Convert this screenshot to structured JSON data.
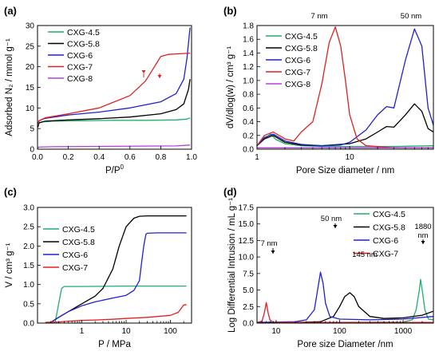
{
  "chart_data": [
    {
      "panel": "(a)",
      "type": "line",
      "xlabel": "P/P",
      "xlabel_sup": "0",
      "ylabel": "Adsorbed N₂ / mmol g⁻¹",
      "xlim": [
        0,
        1
      ],
      "ylim": [
        0,
        30
      ],
      "xticks": [
        0.0,
        0.2,
        0.4,
        0.6,
        0.8,
        1.0
      ],
      "xticklabels": [
        "0.0",
        "0.2",
        "0.4",
        "0.6",
        "0.8",
        "1.0"
      ],
      "yticks": [
        0,
        5,
        10,
        15,
        20,
        25,
        30
      ],
      "legend_position": "top-left",
      "series": [
        {
          "name": "CXG-4.5",
          "color": "#1fae6e",
          "x": [
            0.002,
            0.01,
            0.03,
            0.1,
            0.3,
            0.5,
            0.7,
            0.9,
            0.97,
            0.99
          ],
          "y": [
            5.6,
            6.3,
            6.6,
            6.8,
            6.9,
            7.0,
            7.0,
            7.1,
            7.3,
            7.6
          ]
        },
        {
          "name": "CXG-5.8",
          "color": "#000000",
          "x": [
            0.002,
            0.01,
            0.05,
            0.2,
            0.4,
            0.6,
            0.8,
            0.9,
            0.95,
            0.98,
            0.99
          ],
          "y": [
            5.3,
            6.4,
            6.8,
            7.1,
            7.4,
            7.8,
            8.6,
            9.6,
            11.0,
            14.5,
            17.0
          ]
        },
        {
          "name": "CXG-6",
          "color": "#2020cc",
          "x": [
            0.002,
            0.01,
            0.05,
            0.2,
            0.4,
            0.6,
            0.8,
            0.9,
            0.95,
            0.97,
            0.99
          ],
          "y": [
            6.0,
            6.9,
            7.5,
            8.3,
            9.0,
            10.0,
            11.5,
            13.5,
            17.0,
            22.0,
            29.5
          ]
        },
        {
          "name": "CXG-7",
          "color": "#e02020",
          "x": [
            0.002,
            0.01,
            0.05,
            0.2,
            0.4,
            0.6,
            0.7,
            0.75,
            0.8,
            0.85,
            0.9,
            0.99
          ],
          "y": [
            5.8,
            6.9,
            7.6,
            8.6,
            10.0,
            13.0,
            16.5,
            19.5,
            22.5,
            23.0,
            23.1,
            23.3
          ]
        },
        {
          "name": "CXG-8",
          "color": "#b040d8",
          "x": [
            0.002,
            0.01,
            0.1,
            0.5,
            0.9,
            0.99
          ],
          "y": [
            0.3,
            0.5,
            0.6,
            0.7,
            0.8,
            1.0
          ]
        }
      ]
    },
    {
      "panel": "(b)",
      "type": "line",
      "xlabel": "Pore Size diameter / nm",
      "ylabel": "dV/dlog(w) / cm³ g⁻¹",
      "xscale": "log",
      "xlim": [
        1,
        80
      ],
      "ylim": [
        0,
        1.8
      ],
      "xticks": [
        1,
        10
      ],
      "xticklabels": [
        "1",
        "10"
      ],
      "yticks": [
        0.0,
        0.2,
        0.4,
        0.6,
        0.8,
        1.0,
        1.2,
        1.4,
        1.6,
        1.8
      ],
      "yticklabels": [
        "0.0",
        "0.2",
        "0.4",
        "0.6",
        "0.8",
        "1.0",
        "1.2",
        "1.4",
        "1.6",
        "1.8"
      ],
      "annotations": [
        "7 nm",
        "50 nm"
      ],
      "legend_position": "top-left",
      "series": [
        {
          "name": "CXG-4.5",
          "color": "#1fae6e",
          "x": [
            1,
            1.2,
            1.4,
            1.6,
            2,
            3,
            5,
            10,
            30,
            80
          ],
          "y": [
            0.05,
            0.15,
            0.22,
            0.14,
            0.08,
            0.05,
            0.04,
            0.04,
            0.04,
            0.05
          ]
        },
        {
          "name": "CXG-5.8",
          "color": "#000000",
          "x": [
            1,
            1.2,
            1.5,
            2,
            3,
            5,
            10,
            15,
            20,
            25,
            30,
            40,
            50,
            60,
            70,
            80
          ],
          "y": [
            0.05,
            0.15,
            0.2,
            0.1,
            0.06,
            0.05,
            0.08,
            0.15,
            0.25,
            0.33,
            0.32,
            0.5,
            0.66,
            0.55,
            0.3,
            0.25
          ]
        },
        {
          "name": "CXG-6",
          "color": "#2020cc",
          "x": [
            1,
            1.2,
            1.5,
            2,
            3,
            5,
            8,
            10,
            15,
            20,
            25,
            30,
            40,
            50,
            60,
            70,
            80
          ],
          "y": [
            0.05,
            0.17,
            0.22,
            0.12,
            0.07,
            0.05,
            0.06,
            0.1,
            0.28,
            0.5,
            0.62,
            0.6,
            1.3,
            1.75,
            1.5,
            0.6,
            0.35
          ]
        },
        {
          "name": "CXG-7",
          "color": "#e02020",
          "x": [
            1,
            1.2,
            1.5,
            2,
            2.5,
            3,
            4,
            5,
            6,
            7,
            8,
            9,
            10,
            12,
            15,
            30,
            80
          ],
          "y": [
            0.05,
            0.2,
            0.25,
            0.15,
            0.12,
            0.25,
            0.4,
            0.95,
            1.55,
            1.78,
            1.5,
            1.0,
            0.5,
            0.15,
            0.05,
            0.02,
            0.02
          ]
        },
        {
          "name": "CXG-8",
          "color": "#b040d8",
          "x": [
            1,
            5,
            10,
            80
          ],
          "y": [
            0.02,
            0.02,
            0.02,
            0.02
          ]
        }
      ]
    },
    {
      "panel": "(c)",
      "type": "line",
      "xlabel": "P / MPa",
      "ylabel": "V / cm³ g⁻¹",
      "xscale": "log",
      "xlim": [
        0.1,
        300
      ],
      "ylim": [
        0,
        3.0
      ],
      "xticks": [
        1,
        10,
        100
      ],
      "xticklabels": [
        "1",
        "10",
        "100"
      ],
      "yticks": [
        0.0,
        0.5,
        1.0,
        1.5,
        2.0,
        2.5,
        3.0
      ],
      "yticklabels": [
        "0.0",
        "0.5",
        "1.0",
        "1.5",
        "2.0",
        "2.5",
        "3.0"
      ],
      "legend_position": "top-left",
      "series": [
        {
          "name": "CXG-4.5",
          "color": "#1fae6e",
          "x": [
            0.25,
            0.3,
            0.35,
            0.4,
            1,
            10,
            100,
            230
          ],
          "y": [
            0.02,
            0.5,
            0.9,
            0.95,
            0.95,
            0.96,
            0.96,
            0.96
          ]
        },
        {
          "name": "CXG-5.8",
          "color": "#000000",
          "x": [
            0.2,
            0.3,
            0.5,
            1,
            2,
            3,
            5,
            7,
            10,
            15,
            20,
            30,
            100,
            230
          ],
          "y": [
            0.02,
            0.15,
            0.3,
            0.5,
            0.7,
            0.9,
            1.4,
            2.0,
            2.5,
            2.72,
            2.77,
            2.78,
            2.78,
            2.78
          ]
        },
        {
          "name": "CXG-6",
          "color": "#2020cc",
          "x": [
            0.2,
            0.3,
            0.5,
            1,
            2,
            5,
            10,
            15,
            20,
            22,
            25,
            28,
            30,
            50,
            230
          ],
          "y": [
            0.02,
            0.15,
            0.3,
            0.45,
            0.55,
            0.65,
            0.72,
            0.85,
            1.1,
            1.5,
            2.0,
            2.3,
            2.33,
            2.34,
            2.34
          ]
        },
        {
          "name": "CXG-7",
          "color": "#e02020",
          "x": [
            0.15,
            0.3,
            0.5,
            1,
            2,
            5,
            10,
            30,
            100,
            150,
            180,
            200,
            230
          ],
          "y": [
            0.02,
            0.03,
            0.05,
            0.07,
            0.08,
            0.1,
            0.12,
            0.15,
            0.2,
            0.28,
            0.4,
            0.47,
            0.48
          ]
        }
      ]
    },
    {
      "panel": "(d)",
      "type": "line",
      "xlabel": "Pore size Diameter /nm",
      "ylabel": "Log Differential Intrusion / mL g⁻¹",
      "xscale": "log",
      "xlim": [
        5,
        3000
      ],
      "ylim": [
        0,
        17.5
      ],
      "xticks": [
        10,
        100,
        1000
      ],
      "xticklabels": [
        "10",
        "100",
        "1000"
      ],
      "yticks": [
        0.0,
        2.5,
        5.0,
        7.5,
        10.0,
        12.5,
        15.0,
        17.5
      ],
      "yticklabels": [
        "0.0",
        "2.5",
        "5.0",
        "7.5",
        "10.0",
        "12.5",
        "15.0",
        "17.5"
      ],
      "annotations": [
        "7 nm",
        "50 nm",
        "145 nm",
        "1880 nm"
      ],
      "legend_position": "top-right",
      "series": [
        {
          "name": "CXG-4.5",
          "color": "#1fae6e",
          "x": [
            5,
            10,
            100,
            1000,
            1400,
            1600,
            1800,
            1880,
            2000,
            2200,
            2500,
            3000
          ],
          "y": [
            0.1,
            0.1,
            0.1,
            0.15,
            0.5,
            2.0,
            5.0,
            6.6,
            5.0,
            2.0,
            0.6,
            0.5
          ]
        },
        {
          "name": "CXG-5.8",
          "color": "#000000",
          "x": [
            5,
            20,
            50,
            80,
            100,
            120,
            145,
            170,
            200,
            300,
            500,
            1000,
            2000,
            3000
          ],
          "y": [
            0.1,
            0.1,
            0.2,
            1.0,
            2.5,
            4.0,
            4.6,
            4.0,
            2.5,
            1.0,
            0.7,
            0.8,
            1.2,
            1.8
          ]
        },
        {
          "name": "CXG-6",
          "color": "#2020cc",
          "x": [
            5,
            20,
            30,
            40,
            45,
            50,
            55,
            60,
            70,
            100,
            300,
            1000,
            3000
          ],
          "y": [
            0.1,
            0.2,
            0.5,
            2.0,
            5.0,
            7.7,
            6.0,
            3.0,
            1.0,
            0.6,
            0.5,
            0.6,
            1.0
          ]
        },
        {
          "name": "CXG-7",
          "color": "#e02020",
          "x": [
            5,
            6,
            6.5,
            7,
            7.5,
            8,
            9,
            20,
            100,
            1000,
            3000
          ],
          "y": [
            0.1,
            0.3,
            1.5,
            3.1,
            1.5,
            0.5,
            0.1,
            0.1,
            0.1,
            0.1,
            0.1
          ]
        }
      ]
    }
  ]
}
